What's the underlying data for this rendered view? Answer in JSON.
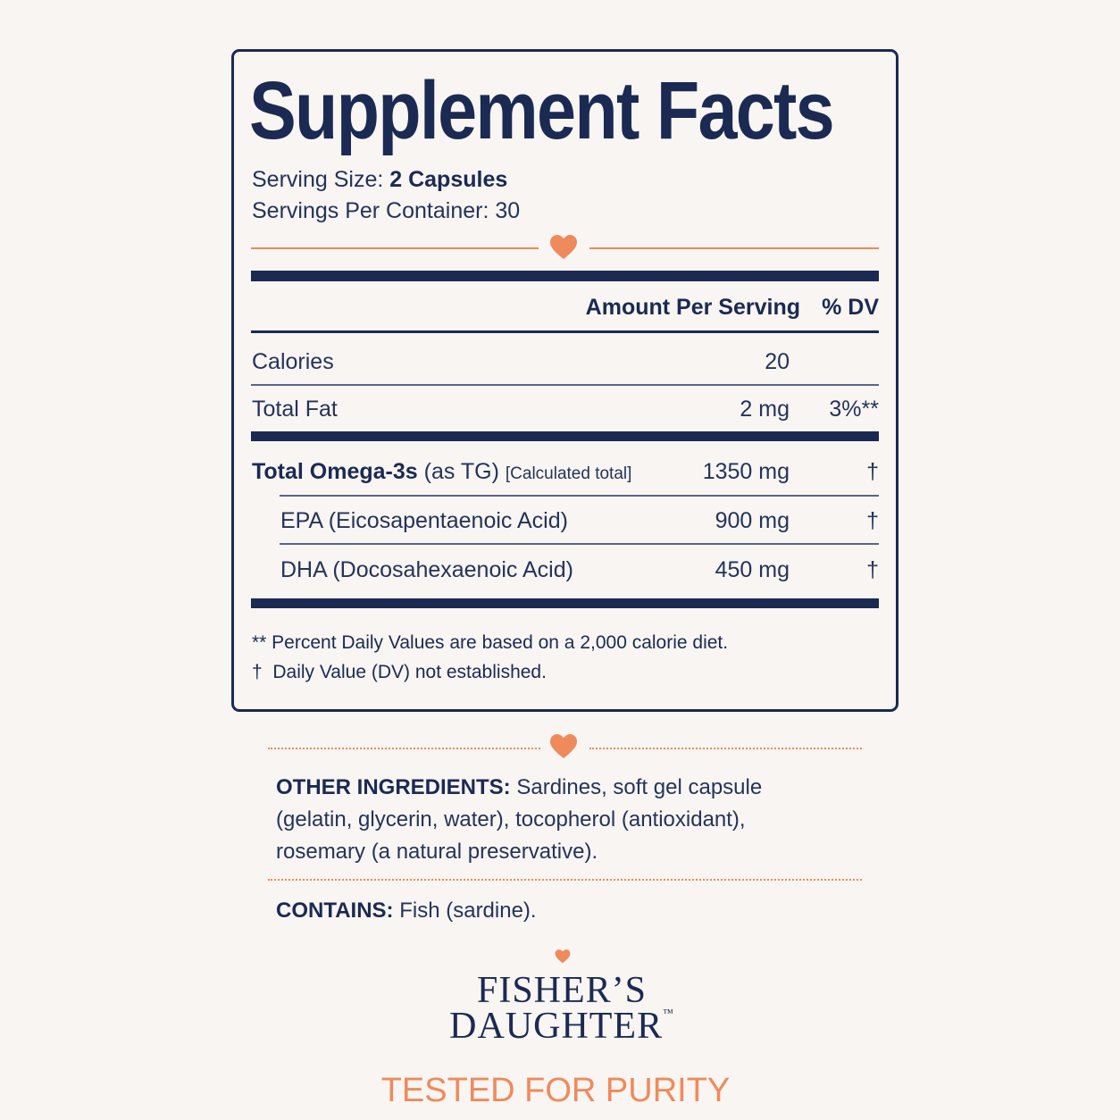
{
  "label": {
    "title": "Supplement Facts",
    "serving_size": {
      "label": "Serving Size:",
      "value": "2 Capsules"
    },
    "servings_per_container": {
      "label": "Servings Per Container:",
      "value": "30"
    },
    "header": {
      "amount": "Amount Per Serving",
      "dv": "% DV"
    },
    "rows": [
      {
        "name": "Calories",
        "amount": "20"
      },
      {
        "name": "Total Fat",
        "amount": "2 mg",
        "dv": "3%**"
      },
      {
        "name": "Total Omega-3s",
        "qualifier": "(as TG)",
        "note": "[Calculated total]",
        "amount": "1350 mg",
        "dv": "†"
      },
      {
        "name": "EPA (Eicosapentaenoic Acid)",
        "amount": "900 mg",
        "dv": "†"
      },
      {
        "name": "DHA (Docosahexaenoic Acid)",
        "amount": "450 mg",
        "dv": "†"
      }
    ],
    "footnotes": [
      "** Percent Daily Values are based on a 2,000 calorie diet.",
      "†  Daily Value (DV) not established."
    ]
  },
  "other_ingredients": {
    "label": "OTHER INGREDIENTS:",
    "text": "Sardines, soft gel capsule (gelatin, glycerin, water), tocopherol (antioxidant), rosemary (a natural preservative)."
  },
  "contains": {
    "label": "CONTAINS:",
    "text": "Fish (sardine)."
  },
  "brand": {
    "line1": "FISHER’S",
    "line2": "DAUGHTER",
    "mark": "™"
  },
  "tagline": "TESTED FOR PURITY"
}
